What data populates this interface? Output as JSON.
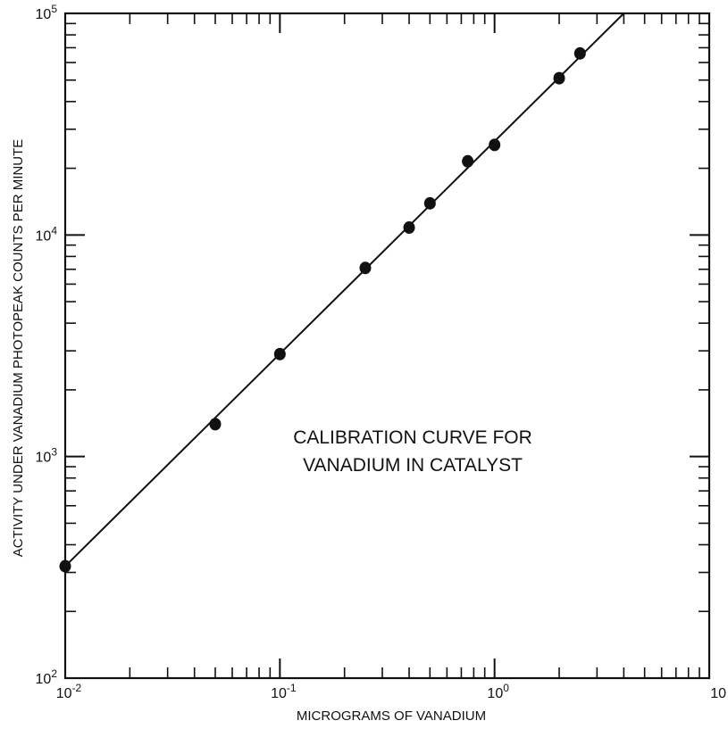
{
  "chart_data": {
    "type": "scatter",
    "title": "",
    "annotation": [
      "CALIBRATION CURVE FOR",
      "VANADIUM IN CATALYST"
    ],
    "xlabel": "MICROGRAMS OF VANADIUM",
    "ylabel": "ACTIVITY UNDER VANADIUM PHOTOPEAK COUNTS PER MINUTE",
    "x_scale": "log",
    "y_scale": "log",
    "xlim": [
      0.01,
      10
    ],
    "ylim": [
      100,
      100000
    ],
    "grid": false,
    "x_ticks": [
      {
        "value": 0.01,
        "base": "10",
        "exp": "-2"
      },
      {
        "value": 0.1,
        "base": "10",
        "exp": "-1"
      },
      {
        "value": 1,
        "base": "10",
        "exp": "0"
      },
      {
        "value": 10,
        "base": "10",
        "exp": ""
      }
    ],
    "y_ticks": [
      {
        "value": 100,
        "base": "10",
        "exp": "2"
      },
      {
        "value": 1000,
        "base": "10",
        "exp": "3"
      },
      {
        "value": 10000,
        "base": "10",
        "exp": "4"
      },
      {
        "value": 100000,
        "base": "10",
        "exp": "5"
      }
    ],
    "points": [
      {
        "x": 0.01,
        "y": 320
      },
      {
        "x": 0.05,
        "y": 1400
      },
      {
        "x": 0.1,
        "y": 2900
      },
      {
        "x": 0.25,
        "y": 7100
      },
      {
        "x": 0.4,
        "y": 10800
      },
      {
        "x": 0.5,
        "y": 13900
      },
      {
        "x": 0.75,
        "y": 21500
      },
      {
        "x": 1.0,
        "y": 25500
      },
      {
        "x": 2.0,
        "y": 51000
      },
      {
        "x": 2.5,
        "y": 66000
      }
    ],
    "fit_line": [
      {
        "x": 0.01,
        "y": 320
      },
      {
        "x": 4.0,
        "y": 100000
      }
    ],
    "colors": {
      "ink": "#111111",
      "background": "#ffffff"
    }
  }
}
